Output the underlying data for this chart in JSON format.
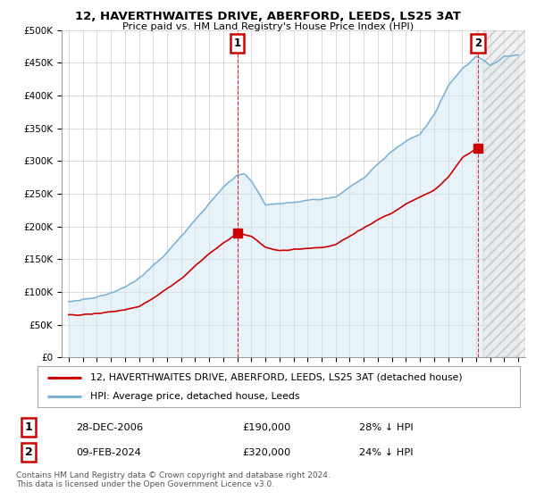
{
  "title1": "12, HAVERTHWAITES DRIVE, ABERFORD, LEEDS, LS25 3AT",
  "title2": "Price paid vs. HM Land Registry's House Price Index (HPI)",
  "legend_red": "12, HAVERTHWAITES DRIVE, ABERFORD, LEEDS, LS25 3AT (detached house)",
  "legend_blue": "HPI: Average price, detached house, Leeds",
  "point1_label": "1",
  "point1_date": "28-DEC-2006",
  "point1_price": "£190,000",
  "point1_hpi": "28% ↓ HPI",
  "point1_year": 2007.0,
  "point1_value": 190000,
  "point2_label": "2",
  "point2_date": "09-FEB-2024",
  "point2_price": "£320,000",
  "point2_hpi": "24% ↓ HPI",
  "point2_year": 2024.12,
  "point2_value": 320000,
  "footer": "Contains HM Land Registry data © Crown copyright and database right 2024.\nThis data is licensed under the Open Government Licence v3.0.",
  "ylim": [
    0,
    500000
  ],
  "xlim": [
    1994.5,
    2027.5
  ],
  "hatch_start": 2024.5,
  "background_color": "#ffffff",
  "grid_color": "#cccccc",
  "red_color": "#cc0000",
  "blue_color": "#7ab0d4",
  "blue_fill_color": "#d0e8f5"
}
